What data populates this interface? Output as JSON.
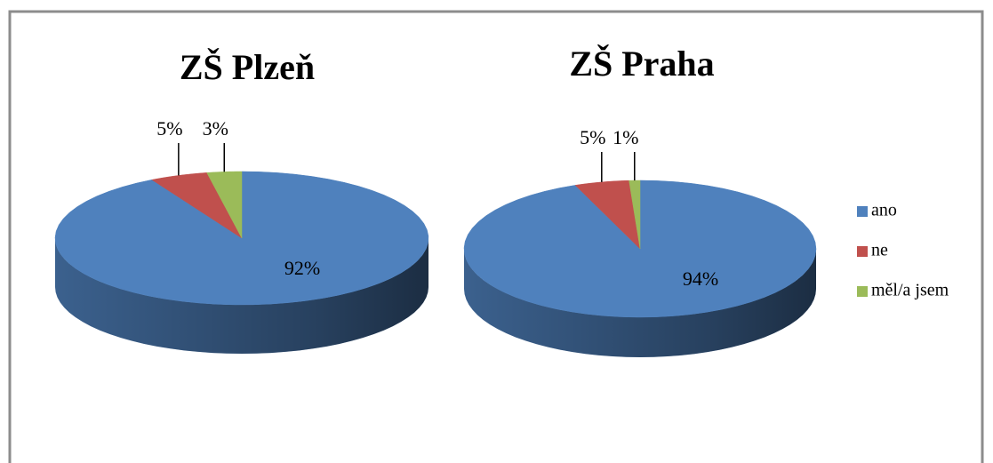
{
  "chart_data": [
    {
      "type": "pie",
      "title": "ZŠ Plzeň",
      "categories": [
        "ano",
        "ne",
        "měl/a jsem"
      ],
      "values": [
        92,
        5,
        3
      ],
      "value_labels": [
        "92%",
        "5%",
        "3%"
      ],
      "colors": [
        "#4f81bd",
        "#c0504d",
        "#9bbb59"
      ],
      "legend": "right"
    },
    {
      "type": "pie",
      "title": "ZŠ Praha",
      "categories": [
        "ano",
        "ne",
        "měl/a jsem"
      ],
      "values": [
        94,
        5,
        1
      ],
      "value_labels": [
        "94%",
        "5%",
        "1%"
      ],
      "colors": [
        "#4f81bd",
        "#c0504d",
        "#9bbb59"
      ],
      "legend": "right"
    }
  ]
}
